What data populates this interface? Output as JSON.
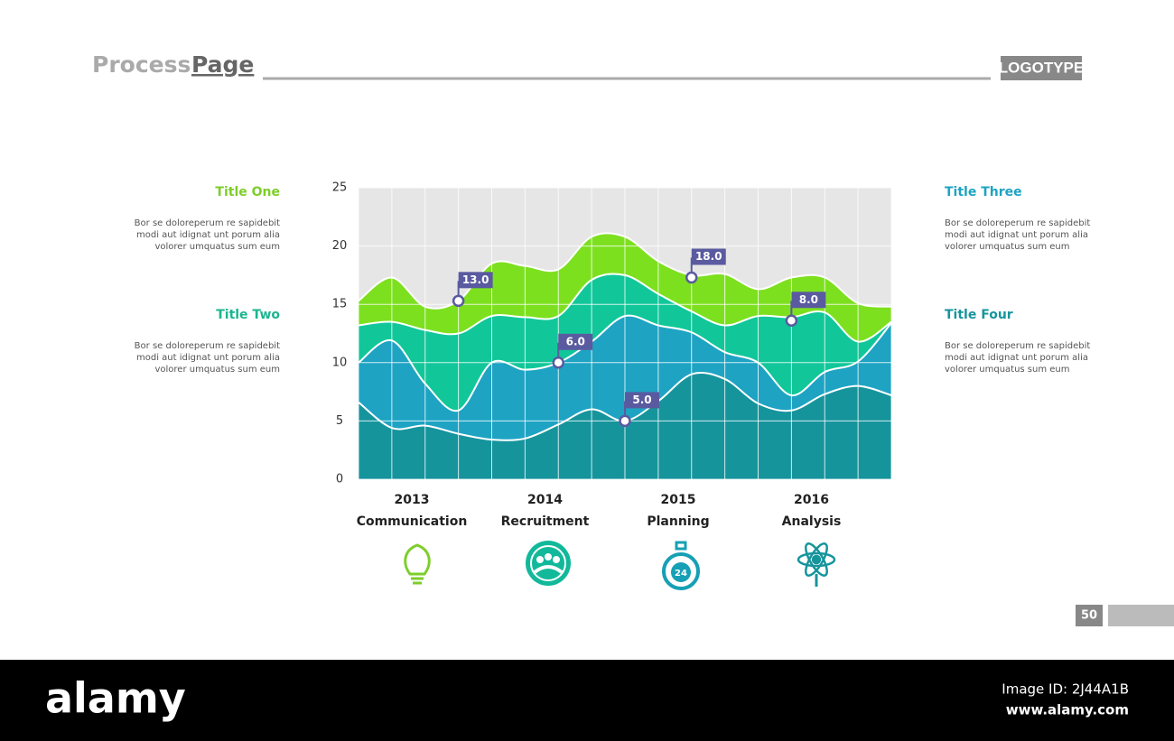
{
  "header": {
    "title_light": "Process",
    "title_bold": "Page",
    "logo": "LOGOTYPE"
  },
  "panels": [
    {
      "title": "Title One",
      "color": "#7dce2a",
      "lines": [
        "Bor se doloreperum re sapidebit",
        "modi aut idignat unt porum alia",
        "volorer umquatus sum eum"
      ]
    },
    {
      "title": "Title Two",
      "color": "#1bb58f",
      "lines": [
        "Bor se doloreperum re sapidebit",
        "modi aut idignat unt porum alia",
        "volorer umquatus sum eum"
      ]
    },
    {
      "title": "Title Three",
      "color": "#1ea3c3",
      "lines": [
        "Bor se doloreperum re sapidebit",
        "modi aut idignat unt porum alia",
        "volorer umquatus sum eum"
      ]
    },
    {
      "title": "Title Four",
      "color": "#16949c",
      "lines": [
        "Bor se doloreperum re sapidebit",
        "modi aut idignat unt porum alia",
        "volorer umquatus sum eum"
      ]
    }
  ],
  "chart_data": {
    "type": "stacked_area",
    "x": [
      2012.6,
      2012.85,
      2013.1,
      2013.35,
      2013.6,
      2013.85,
      2014.1,
      2014.35,
      2014.6,
      2014.85,
      2015.1,
      2015.35,
      2015.6,
      2015.85,
      2016.1,
      2016.35,
      2016.6
    ],
    "xlim": [
      2012.6,
      2016.6
    ],
    "xticks": [
      2013,
      2014,
      2015,
      2016
    ],
    "xtick_names": [
      "Communication",
      "Recruitment",
      "Planning",
      "Analysis"
    ],
    "ylim": [
      0,
      25
    ],
    "yticks": [
      0,
      5,
      10,
      15,
      20,
      25
    ],
    "grid": true,
    "series": [
      {
        "color": "#16949c",
        "values": [
          6.6,
          4.4,
          4.6,
          3.9,
          3.4,
          3.5,
          4.7,
          6.0,
          5.0,
          6.7,
          9.0,
          8.6,
          6.5,
          5.9,
          7.3,
          8.0,
          7.2
        ]
      },
      {
        "color": "#1ea3c3",
        "values": [
          3.4,
          7.5,
          3.6,
          2.0,
          6.6,
          5.9,
          5.3,
          5.8,
          9.0,
          6.5,
          3.6,
          2.3,
          3.5,
          1.3,
          1.9,
          2.1,
          6.2
        ]
      },
      {
        "color": "#11c79a",
        "values": [
          3.2,
          1.6,
          4.6,
          6.6,
          4.0,
          4.5,
          4.0,
          5.3,
          3.5,
          2.7,
          1.8,
          2.3,
          4.0,
          6.7,
          5.1,
          1.7,
          0.1
        ]
      },
      {
        "color": "#7de01f",
        "values": [
          2.1,
          3.8,
          2.0,
          2.8,
          4.5,
          4.4,
          4.0,
          3.7,
          3.3,
          2.8,
          3.1,
          4.4,
          2.3,
          3.4,
          3.0,
          3.3,
          1.3
        ]
      }
    ],
    "annotations": [
      {
        "x": 2013.35,
        "y": 15.3,
        "label": "13.0"
      },
      {
        "x": 2014.1,
        "y": 10.0,
        "label": "6.0"
      },
      {
        "x": 2014.6,
        "y": 5.0,
        "label": "5.0"
      },
      {
        "x": 2015.1,
        "y": 17.3,
        "label": "18.0"
      },
      {
        "x": 2015.85,
        "y": 13.6,
        "label": "8.0"
      }
    ],
    "stopwatch_label": "24"
  },
  "page_number": "50",
  "footer": {
    "brand": "alamy",
    "image_id": "Image ID: 2J44A1B",
    "url": "www.alamy.com"
  }
}
